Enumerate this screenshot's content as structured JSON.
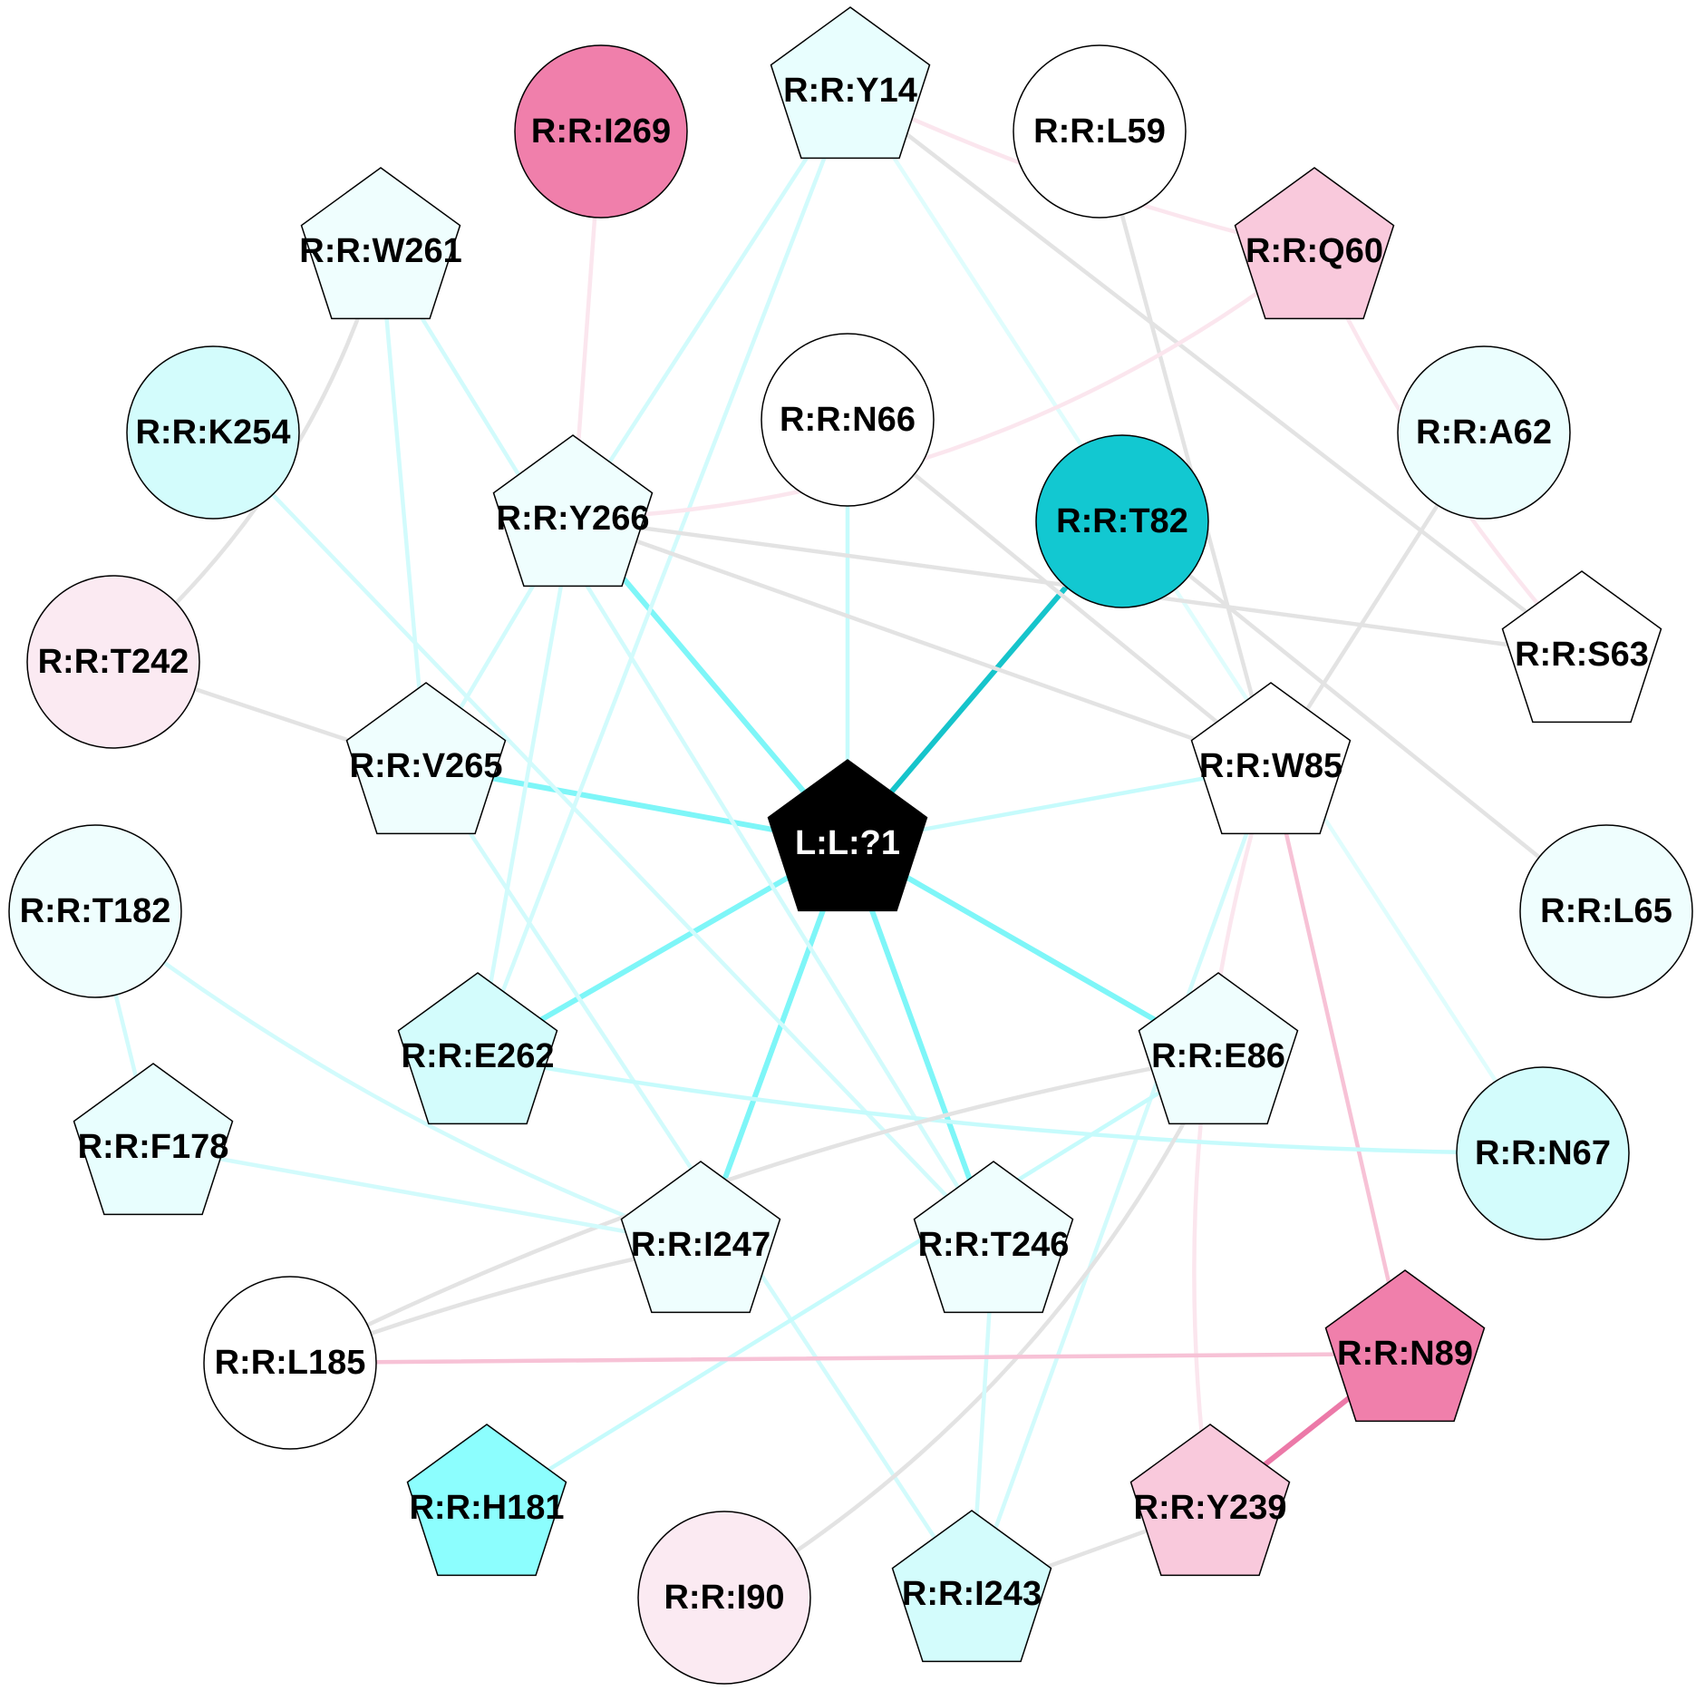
{
  "nodes": [
    {
      "id": "L:L:?1",
      "shape": "pentagon",
      "fill": "#000000",
      "text_color": "#ffffff"
    },
    {
      "id": "R:R:Y14",
      "shape": "pentagon",
      "fill": "#e8fefe"
    },
    {
      "id": "R:R:I269",
      "shape": "circle",
      "fill": "#f07fab"
    },
    {
      "id": "R:R:L59",
      "shape": "circle",
      "fill": "#ffffff"
    },
    {
      "id": "R:R:W261",
      "shape": "pentagon",
      "fill": "#effefe"
    },
    {
      "id": "R:R:Q60",
      "shape": "pentagon",
      "fill": "#f9c9dc"
    },
    {
      "id": "R:R:K254",
      "shape": "circle",
      "fill": "#d3fcfc"
    },
    {
      "id": "R:R:N66",
      "shape": "circle",
      "fill": "#ffffff"
    },
    {
      "id": "R:R:A62",
      "shape": "circle",
      "fill": "#ebfefe"
    },
    {
      "id": "R:R:Y266",
      "shape": "pentagon",
      "fill": "#effefe"
    },
    {
      "id": "R:R:T82",
      "shape": "circle",
      "fill": "#12c8d1"
    },
    {
      "id": "R:R:T242",
      "shape": "circle",
      "fill": "#fbeaf2"
    },
    {
      "id": "R:R:S63",
      "shape": "pentagon",
      "fill": "#ffffff"
    },
    {
      "id": "R:R:V265",
      "shape": "pentagon",
      "fill": "#effefe"
    },
    {
      "id": "R:R:W85",
      "shape": "pentagon",
      "fill": "#ffffff"
    },
    {
      "id": "R:R:T182",
      "shape": "circle",
      "fill": "#effefe"
    },
    {
      "id": "R:R:L65",
      "shape": "circle",
      "fill": "#effefe"
    },
    {
      "id": "R:R:E262",
      "shape": "pentagon",
      "fill": "#d3fcfc"
    },
    {
      "id": "R:R:E86",
      "shape": "pentagon",
      "fill": "#effefe"
    },
    {
      "id": "R:R:F178",
      "shape": "pentagon",
      "fill": "#e8fefe"
    },
    {
      "id": "R:R:N67",
      "shape": "circle",
      "fill": "#d3fcfc"
    },
    {
      "id": "R:R:I247",
      "shape": "pentagon",
      "fill": "#effefe"
    },
    {
      "id": "R:R:T246",
      "shape": "pentagon",
      "fill": "#effefe"
    },
    {
      "id": "R:R:L185",
      "shape": "circle",
      "fill": "#ffffff"
    },
    {
      "id": "R:R:N89",
      "shape": "pentagon",
      "fill": "#f07fab"
    },
    {
      "id": "R:R:H181",
      "shape": "pentagon",
      "fill": "#8cfefe"
    },
    {
      "id": "R:R:Y239",
      "shape": "pentagon",
      "fill": "#f9c9dc"
    },
    {
      "id": "R:R:I90",
      "shape": "circle",
      "fill": "#fbeaf2"
    },
    {
      "id": "R:R:I243",
      "shape": "pentagon",
      "fill": "#d3fcfc"
    }
  ],
  "edges": [
    {
      "source": "L:L:?1",
      "target": "R:R:T82",
      "color": "#16c4cb",
      "weight": "strong"
    },
    {
      "source": "L:L:?1",
      "target": "R:R:Y266",
      "color": "#7ef6f8",
      "weight": "strong"
    },
    {
      "source": "L:L:?1",
      "target": "R:R:V265",
      "color": "#7ef6f8",
      "weight": "strong"
    },
    {
      "source": "L:L:?1",
      "target": "R:R:E262",
      "color": "#7ef6f8",
      "weight": "strong"
    },
    {
      "source": "L:L:?1",
      "target": "R:R:I247",
      "color": "#7ef6f8",
      "weight": "strong"
    },
    {
      "source": "L:L:?1",
      "target": "R:R:T246",
      "color": "#7ef6f8",
      "weight": "strong"
    },
    {
      "source": "L:L:?1",
      "target": "R:R:E86",
      "color": "#7ef6f8",
      "weight": "strong"
    },
    {
      "source": "L:L:?1",
      "target": "R:R:W85",
      "color": "#c6fbfc",
      "weight": "medium"
    },
    {
      "source": "L:L:?1",
      "target": "R:R:N66",
      "color": "#c6fbfc",
      "weight": "medium"
    },
    {
      "source": "R:R:Y14",
      "target": "R:R:Y266",
      "color": "#d2fbfc",
      "weight": "medium"
    },
    {
      "source": "R:R:Y14",
      "target": "R:R:E262",
      "color": "#d2fbfc",
      "weight": "medium"
    },
    {
      "source": "R:R:Y14",
      "target": "R:R:N67",
      "color": "#e0fdfd",
      "weight": "medium"
    },
    {
      "source": "R:R:Y14",
      "target": "R:R:Q60",
      "color": "#fbe6ee",
      "weight": "medium"
    },
    {
      "source": "R:R:Y14",
      "target": "R:R:S63",
      "color": "#e3e3e3",
      "weight": "medium"
    },
    {
      "source": "R:R:I269",
      "target": "R:R:Y266",
      "color": "#fbe6ee",
      "weight": "medium"
    },
    {
      "source": "R:R:L59",
      "target": "R:R:W85",
      "color": "#e3e3e3",
      "weight": "medium"
    },
    {
      "source": "R:R:Q60",
      "target": "R:R:Y266",
      "color": "#fbe6ee",
      "weight": "medium"
    },
    {
      "source": "R:R:Q60",
      "target": "R:R:S63",
      "color": "#fbe6ee",
      "weight": "medium"
    },
    {
      "source": "R:R:W261",
      "target": "R:R:T242",
      "color": "#e3e3e3",
      "weight": "medium"
    },
    {
      "source": "R:R:W261",
      "target": "R:R:V265",
      "color": "#d2fbfc",
      "weight": "medium"
    },
    {
      "source": "R:R:W261",
      "target": "R:R:T246",
      "color": "#d2fbfc",
      "weight": "medium"
    },
    {
      "source": "R:R:K254",
      "target": "R:R:T246",
      "color": "#d2fbfc",
      "weight": "medium"
    },
    {
      "source": "R:R:N66",
      "target": "R:R:W85",
      "color": "#e3e3e3",
      "weight": "medium"
    },
    {
      "source": "R:R:A62",
      "target": "R:R:W85",
      "color": "#e3e3e3",
      "weight": "medium"
    },
    {
      "source": "R:R:Y266",
      "target": "R:R:S63",
      "color": "#e3e3e3",
      "weight": "medium"
    },
    {
      "source": "R:R:Y266",
      "target": "R:R:W85",
      "color": "#e3e3e3",
      "weight": "medium"
    },
    {
      "source": "R:R:Y266",
      "target": "R:R:V265",
      "color": "#d2fbfc",
      "weight": "medium"
    },
    {
      "source": "R:R:Y266",
      "target": "R:R:E262",
      "color": "#d2fbfc",
      "weight": "medium"
    },
    {
      "source": "R:R:T82",
      "target": "R:R:L65",
      "color": "#e3e3e3",
      "weight": "medium"
    },
    {
      "source": "R:R:T242",
      "target": "R:R:V265",
      "color": "#e3e3e3",
      "weight": "medium"
    },
    {
      "source": "R:R:V265",
      "target": "R:R:I243",
      "color": "#d2fbfc",
      "weight": "medium"
    },
    {
      "source": "R:R:W85",
      "target": "R:R:N89",
      "color": "#f7c2d6",
      "weight": "medium"
    },
    {
      "source": "R:R:W85",
      "target": "R:R:Y239",
      "color": "#fbe6ee",
      "weight": "medium"
    },
    {
      "source": "R:R:W85",
      "target": "R:R:I243",
      "color": "#d2fbfc",
      "weight": "medium"
    },
    {
      "source": "R:R:T182",
      "target": "R:R:F178",
      "color": "#d2fbfc",
      "weight": "medium"
    },
    {
      "source": "R:R:T182",
      "target": "R:R:I247",
      "color": "#d2fbfc",
      "weight": "medium"
    },
    {
      "source": "R:R:E262",
      "target": "R:R:N67",
      "color": "#c6fbfc",
      "weight": "medium"
    },
    {
      "source": "R:R:E86",
      "target": "R:R:L185",
      "color": "#e3e3e3",
      "weight": "medium"
    },
    {
      "source": "R:R:E86",
      "target": "R:R:H181",
      "color": "#c6fbfc",
      "weight": "medium"
    },
    {
      "source": "R:R:E86",
      "target": "R:R:I90",
      "color": "#e3e3e3",
      "weight": "medium"
    },
    {
      "source": "R:R:F178",
      "target": "R:R:I247",
      "color": "#d2fbfc",
      "weight": "medium"
    },
    {
      "source": "R:R:I247",
      "target": "R:R:L185",
      "color": "#e3e3e3",
      "weight": "medium"
    },
    {
      "source": "R:R:T246",
      "target": "R:R:I243",
      "color": "#d2fbfc",
      "weight": "medium"
    },
    {
      "source": "R:R:L185",
      "target": "R:R:N89",
      "color": "#f7c2d6",
      "weight": "medium"
    },
    {
      "source": "R:R:N89",
      "target": "R:R:Y239",
      "color": "#ec79a8",
      "weight": "strong"
    },
    {
      "source": "R:R:Y239",
      "target": "R:R:I243",
      "color": "#e3e3e3",
      "weight": "medium"
    }
  ]
}
